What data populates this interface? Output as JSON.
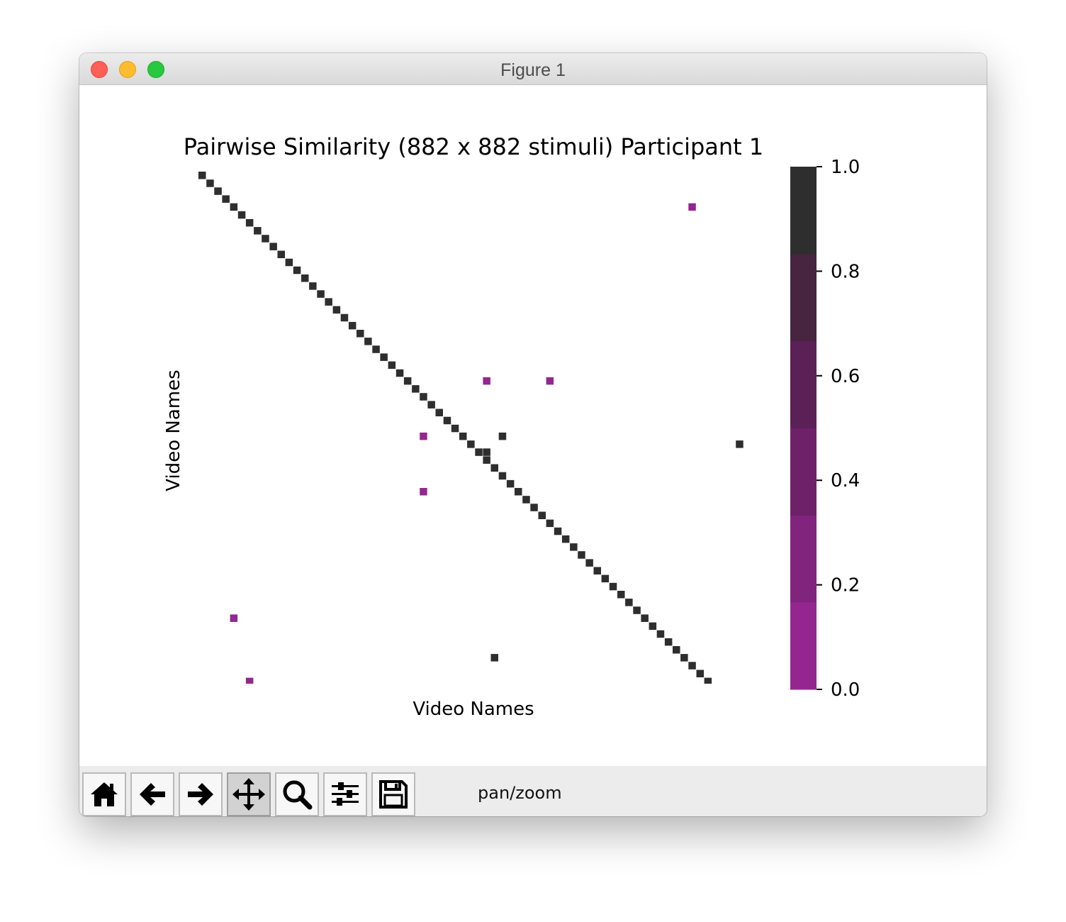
{
  "window": {
    "title": "Figure 1"
  },
  "toolbar": {
    "tools": [
      {
        "name": "home-button",
        "icon": "home-icon"
      },
      {
        "name": "back-button",
        "icon": "arrow-left-icon"
      },
      {
        "name": "forward-button",
        "icon": "arrow-right-icon"
      },
      {
        "name": "pan-button",
        "icon": "move-icon",
        "active": true
      },
      {
        "name": "zoom-button",
        "icon": "magnifier-icon"
      },
      {
        "name": "subplots-button",
        "icon": "sliders-icon"
      },
      {
        "name": "save-button",
        "icon": "floppy-disk-icon"
      }
    ],
    "mode_label": "pan/zoom"
  },
  "chart_data": {
    "type": "heatmap",
    "title": "Pairwise Similarity (882 x 882 stimuli) Participant 1",
    "xlabel": "Video Names",
    "ylabel": "Video Names",
    "grid": false,
    "ticks_visible": false,
    "visible_range": {
      "rows": [
        0,
        71
      ],
      "cols": [
        0,
        71
      ]
    },
    "diagonal_value": 1.0,
    "background_value": null,
    "off_diagonal_cells": [
      {
        "row": 4,
        "col": 62,
        "value": 0.1
      },
      {
        "row": 26,
        "col": 36,
        "value": 0.1
      },
      {
        "row": 26,
        "col": 44,
        "value": 0.1
      },
      {
        "row": 33,
        "col": 28,
        "value": 0.1
      },
      {
        "row": 33,
        "col": 38,
        "value": 1.0
      },
      {
        "row": 34,
        "col": 68,
        "value": 1.0
      },
      {
        "row": 35,
        "col": 36,
        "value": 1.0
      },
      {
        "row": 40,
        "col": 28,
        "value": 0.1
      },
      {
        "row": 56,
        "col": 4,
        "value": 0.1
      },
      {
        "row": 61,
        "col": 37,
        "value": 1.0
      },
      {
        "row": 64,
        "col": 6,
        "value": 0.1
      }
    ],
    "colorbar": {
      "vmin": 0.0,
      "vmax": 1.0,
      "ticks": [
        0.0,
        0.2,
        0.4,
        0.6,
        0.8,
        1.0
      ],
      "tick_labels": [
        "0.0",
        "0.2",
        "0.4",
        "0.6",
        "0.8",
        "1.0"
      ],
      "placement": "right",
      "bands": [
        {
          "from": 0.0,
          "to": 0.167,
          "color": "#93278f"
        },
        {
          "from": 0.167,
          "to": 0.333,
          "color": "#81247e"
        },
        {
          "from": 0.333,
          "to": 0.5,
          "color": "#6e2169"
        },
        {
          "from": 0.5,
          "to": 0.667,
          "color": "#5b2156"
        },
        {
          "from": 0.667,
          "to": 0.833,
          "color": "#472440"
        },
        {
          "from": 0.833,
          "to": 1.0,
          "color": "#2e2e2e"
        }
      ]
    }
  }
}
